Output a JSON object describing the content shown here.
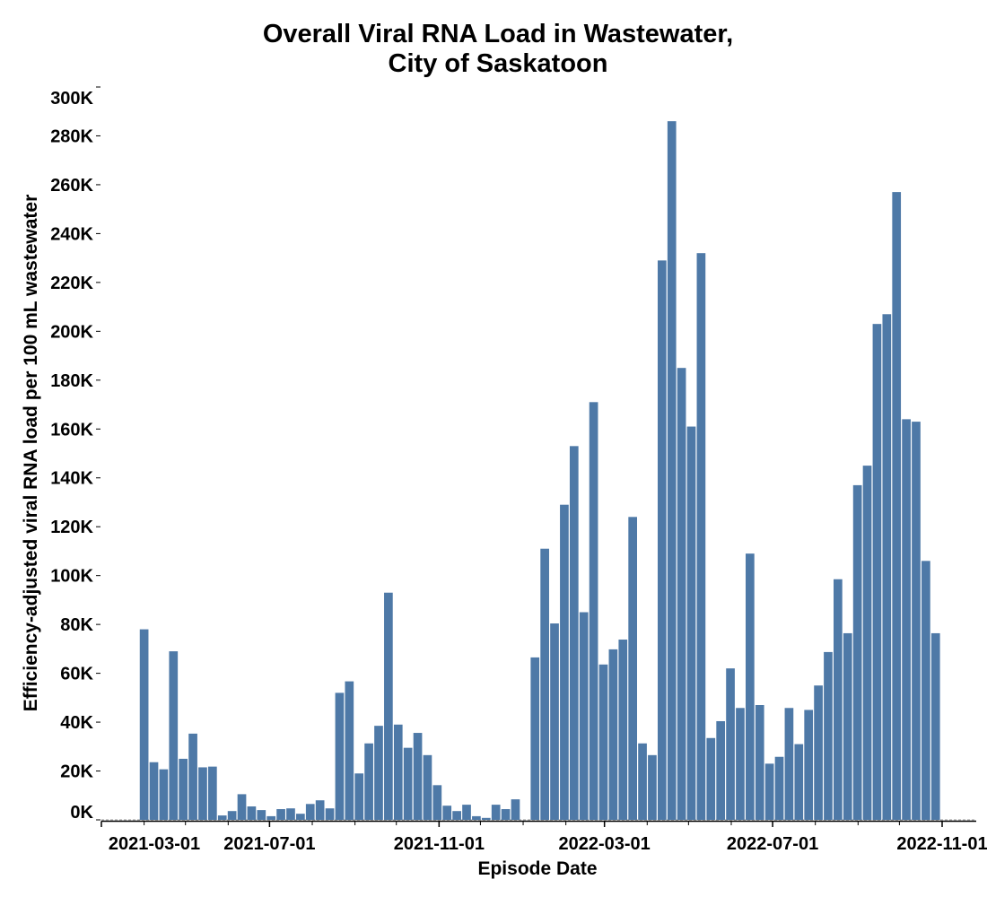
{
  "chart_data": {
    "type": "bar",
    "title": [
      "Overall Viral RNA Load in Wastewater,",
      "City of Saskatoon"
    ],
    "xlabel": "Episode Date",
    "ylabel": "Efficiency-adjusted viral RNA load per 100 mL wastewater",
    "ylim": [
      0,
      300000
    ],
    "y_ticks": [
      0,
      20000,
      40000,
      60000,
      80000,
      100000,
      120000,
      140000,
      160000,
      180000,
      200000,
      220000,
      240000,
      260000,
      280000,
      300000
    ],
    "y_tick_labels": [
      "0K",
      "20K",
      "40K",
      "60K",
      "80K",
      "100K",
      "120K",
      "140K",
      "160K",
      "180K",
      "200K",
      "220K",
      "240K",
      "260K",
      "280K",
      "300K"
    ],
    "x_tick_labels": [
      "2021-03-01",
      "2021-07-01",
      "2021-11-01",
      "2022-03-01",
      "2022-07-01",
      "2022-11-01"
    ],
    "x_range": [
      "2021-03-01",
      "2022-12-01"
    ],
    "bar_start_date": "2021-04-01",
    "bar_interval_days": 7.09,
    "bar_color": "#4e79a7",
    "grid": false,
    "values": [
      78000,
      23600,
      20700,
      69000,
      25000,
      35300,
      21500,
      21800,
      1800,
      3600,
      10500,
      5500,
      4000,
      1500,
      4400,
      4700,
      2500,
      6500,
      8000,
      4700,
      52000,
      56700,
      19000,
      31300,
      38500,
      93000,
      39000,
      29500,
      35600,
      26500,
      14200,
      5800,
      3600,
      6200,
      1500,
      800,
      6200,
      4400,
      8400,
      null,
      66500,
      111000,
      80400,
      129000,
      153000,
      85000,
      171000,
      63600,
      69800,
      73800,
      124000,
      31300,
      26500,
      229000,
      286000,
      185000,
      161000,
      232000,
      33500,
      40400,
      62000,
      45800,
      109000,
      47000,
      23000,
      25800,
      45800,
      31000,
      45000,
      55000,
      68700,
      98500,
      76400,
      137000,
      145000,
      203000,
      207000,
      257000,
      164000,
      163000,
      106000,
      76400
    ]
  }
}
